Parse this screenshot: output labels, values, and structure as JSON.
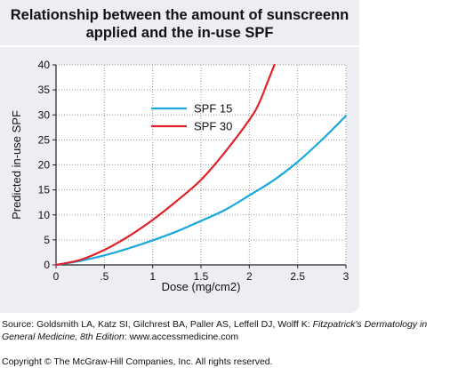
{
  "title_lines": [
    "Relationship between the amount of sunscreenn",
    "applied and the in-use SPF"
  ],
  "colors": {
    "panel_background": "#eceef4",
    "spf15": "#1aa7dd",
    "spf30": "#e02128"
  },
  "chart_data": {
    "type": "line",
    "title": "Relationship between the amount of sunscreenn applied and the in-use SPF",
    "xlabel": "Dose (mg/cm2)",
    "ylabel": "Predicted in-use SPF",
    "xlim": [
      0,
      3
    ],
    "ylim": [
      0,
      40
    ],
    "x_ticks": [
      0,
      0.5,
      1,
      1.5,
      2,
      2.5,
      3
    ],
    "x_tick_labels": [
      "0",
      ".5",
      "1",
      "1.5",
      "2",
      "2.5",
      "3"
    ],
    "y_ticks": [
      0,
      5,
      10,
      15,
      20,
      25,
      30,
      35,
      40
    ],
    "y_tick_labels": [
      "0",
      "5",
      "10",
      "15",
      "20",
      "25",
      "30",
      "35",
      "40"
    ],
    "grid": true,
    "legend_position": "upper-left",
    "series": [
      {
        "name": "SPF 15",
        "color": "#1aa7dd",
        "x": [
          0,
          0.25,
          0.5,
          0.75,
          1.0,
          1.25,
          1.5,
          1.75,
          2.0,
          2.25,
          2.5,
          2.75,
          3.0
        ],
        "y": [
          0,
          0.8,
          1.9,
          3.3,
          4.9,
          6.7,
          8.8,
          11.0,
          13.9,
          16.9,
          20.6,
          25.0,
          29.8
        ]
      },
      {
        "name": "SPF 30",
        "color": "#e02128",
        "x": [
          0,
          0.25,
          0.5,
          0.75,
          1.0,
          1.25,
          1.5,
          1.75,
          2.0,
          2.1,
          2.2,
          2.26
        ],
        "y": [
          0,
          1.0,
          3.0,
          5.7,
          9.0,
          12.8,
          17.0,
          22.6,
          29.0,
          32.3,
          37.1,
          40.0
        ]
      }
    ]
  },
  "source": {
    "prefix": "Source: Goldsmith LA, Katz SI, Gilchrest BA, Paller AS, Leffell DJ, Wolff K: ",
    "book": "Fitzpatrick's Dermatology in General Medicine, 8th Edition",
    "suffix": ": www.accessmedicine.com"
  },
  "copyright": "Copyright © The McGraw-Hill Companies, Inc. All rights reserved."
}
